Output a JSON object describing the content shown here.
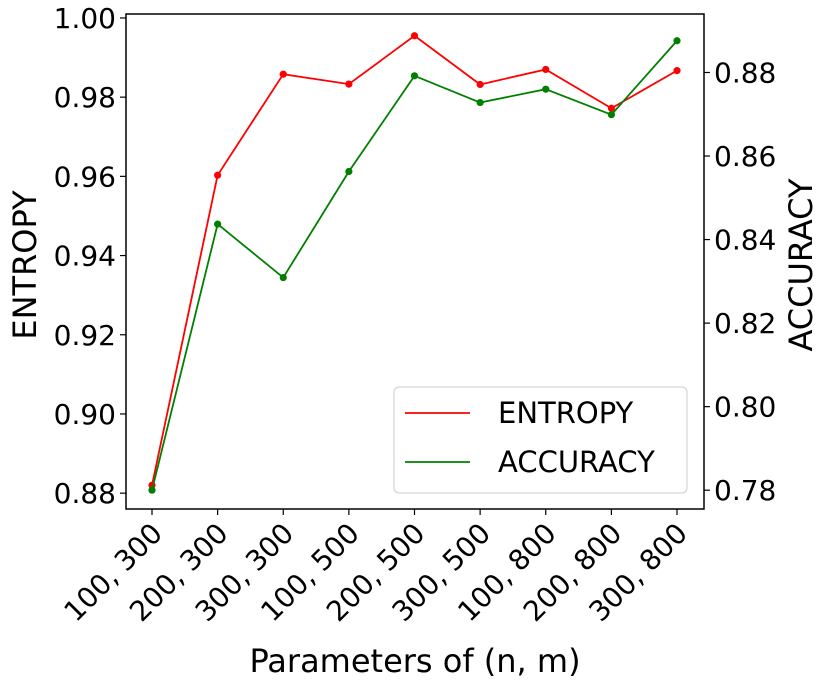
{
  "chart_data": {
    "type": "line",
    "categories": [
      "100, 300",
      "200, 300",
      "300, 300",
      "100, 500",
      "200, 500",
      "300, 500",
      "100, 800",
      "200, 800",
      "300, 800"
    ],
    "xlabel": "Parameters of (n, m)",
    "ylabel_left": "ENTROPY",
    "ylabel_right": "ACCURACY",
    "ylim_left": [
      0.876,
      1.001
    ],
    "ylim_right": [
      0.7755,
      0.894
    ],
    "yticks_left": [
      "0.88",
      "0.90",
      "0.92",
      "0.94",
      "0.96",
      "0.98",
      "1.00"
    ],
    "yticks_right": [
      "0.78",
      "0.80",
      "0.82",
      "0.84",
      "0.86",
      "0.88"
    ],
    "grid": false,
    "legend_position": "lower-right",
    "series": [
      {
        "name": "ENTROPY",
        "axis": "left",
        "color": "#ff0000",
        "values": [
          0.882,
          0.9603,
          0.9858,
          0.9833,
          0.9955,
          0.9832,
          0.987,
          0.9772,
          0.9867
        ]
      },
      {
        "name": "ACCURACY",
        "axis": "right",
        "color": "#008000",
        "values": [
          0.78,
          0.8437,
          0.8309,
          0.8563,
          0.8792,
          0.8728,
          0.876,
          0.8699,
          0.8876
        ]
      }
    ]
  }
}
